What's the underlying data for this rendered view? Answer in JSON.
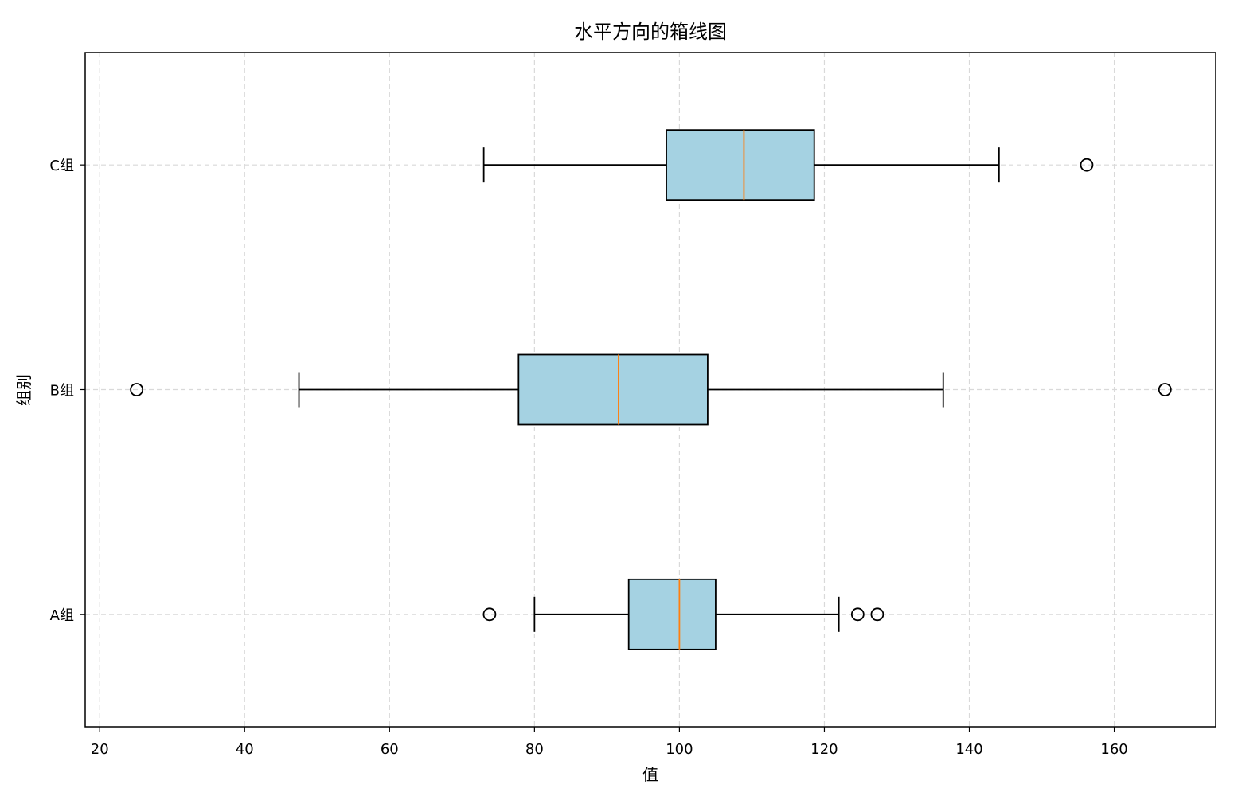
{
  "chart_data": {
    "type": "boxplot",
    "orientation": "horizontal",
    "title": "水平方向的箱线图",
    "xlabel": "值",
    "ylabel": "组别",
    "xlim": [
      18,
      174
    ],
    "xticks": [
      20,
      40,
      60,
      80,
      100,
      120,
      140,
      160
    ],
    "grid": true,
    "categories": [
      "A组",
      "B组",
      "C组"
    ],
    "boxes": [
      {
        "category": "A组",
        "whisker_low": 80.0,
        "q1": 93.0,
        "median": 100.0,
        "q3": 105.0,
        "whisker_high": 122.0,
        "outliers": [
          73.8,
          124.6,
          127.3
        ]
      },
      {
        "category": "B组",
        "whisker_low": 47.5,
        "q1": 77.8,
        "median": 91.6,
        "q3": 103.9,
        "whisker_high": 136.4,
        "outliers": [
          25.1,
          167.0
        ]
      },
      {
        "category": "C组",
        "whisker_low": 73.0,
        "q1": 98.2,
        "median": 108.9,
        "q3": 118.6,
        "whisker_high": 144.1,
        "outliers": [
          156.2
        ]
      }
    ],
    "colors": {
      "box_fill": "#a5d2e2",
      "median": "#ff7f0e",
      "edge": "#000000",
      "grid": "#d9d9d9"
    }
  }
}
